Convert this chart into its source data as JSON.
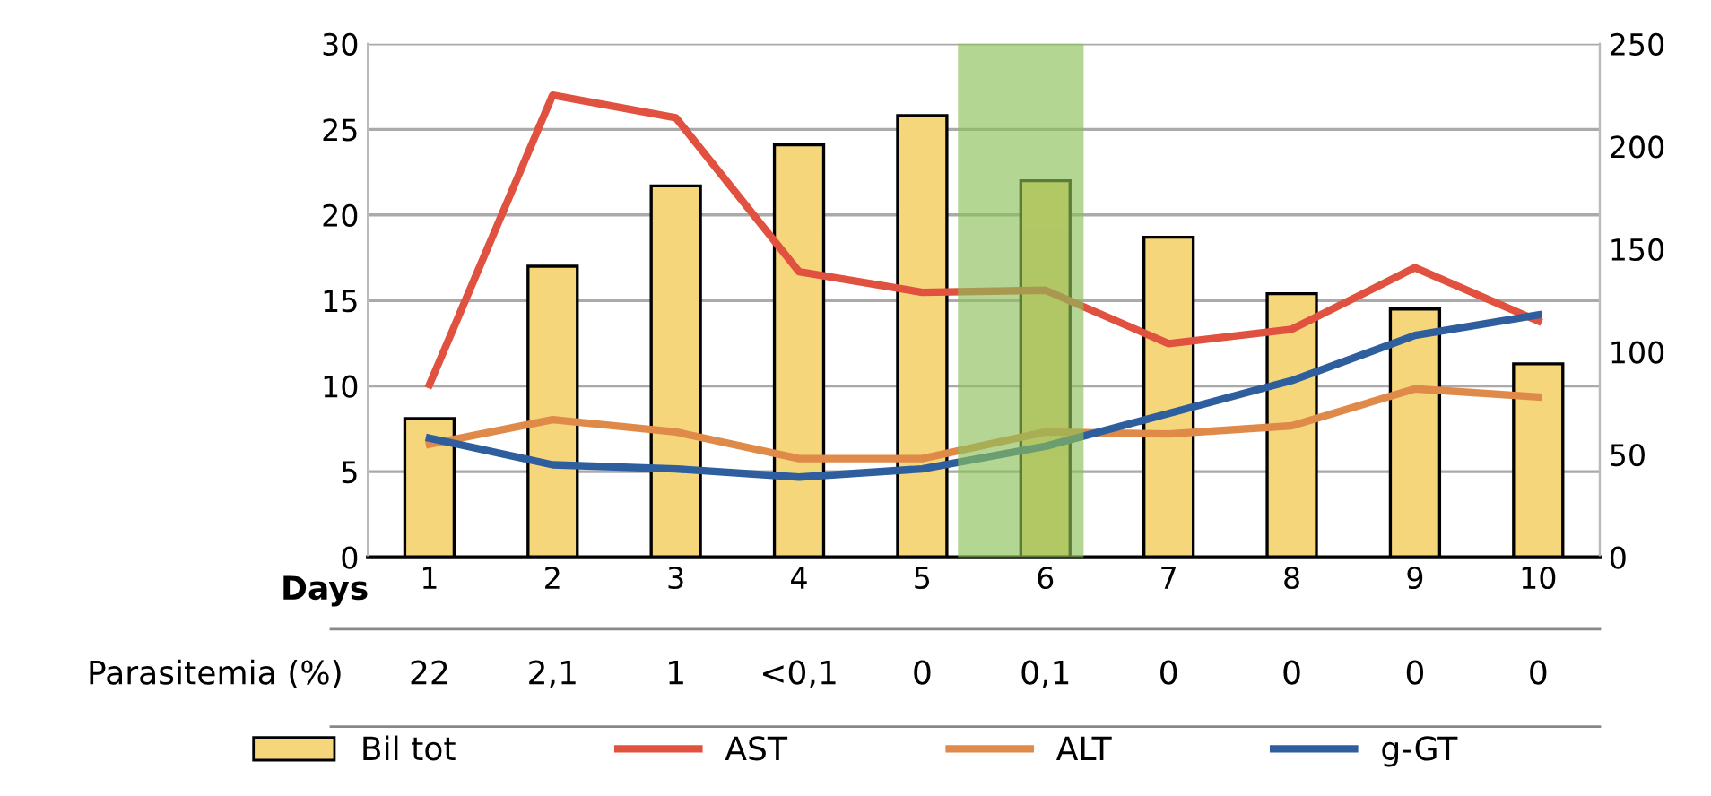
{
  "chart_data": {
    "type": "bar",
    "xlabel": "Days",
    "x": [
      1,
      2,
      3,
      4,
      5,
      6,
      7,
      8,
      9,
      10
    ],
    "xlim": [
      0.5,
      10.5
    ],
    "xticks": [
      1,
      2,
      3,
      4,
      5,
      6,
      7,
      8,
      9,
      10
    ],
    "ylim": [
      0,
      30
    ],
    "yticks": [
      0,
      5,
      10,
      15,
      20,
      25,
      30
    ],
    "y2lim": [
      0,
      250
    ],
    "y2ticks": [
      0,
      50,
      100,
      150,
      200,
      250
    ],
    "series": [
      {
        "name": "Bil tot",
        "color": "#f5d67a",
        "values": [
          8.1,
          17.0,
          21.7,
          24.1,
          25.8,
          22.0,
          18.7,
          15.4,
          14.5,
          11.3
        ]
      },
      {
        "name": "AST",
        "type": "line",
        "axis": "y2",
        "color": "#e0513f",
        "values": [
          84,
          225,
          214,
          139,
          129,
          130,
          104,
          111,
          141,
          115
        ]
      },
      {
        "name": "ALT",
        "type": "line",
        "axis": "y2",
        "color": "#e08a4a",
        "values": [
          55,
          67,
          61,
          48,
          48,
          61,
          60,
          64,
          82,
          78
        ]
      },
      {
        "name": "g-GT",
        "type": "line",
        "axis": "y2",
        "color": "#2e5e9e",
        "values": [
          58,
          45,
          43,
          39,
          43,
          54,
          70,
          86,
          108,
          118
        ]
      }
    ],
    "bands": [
      {
        "axis": "x",
        "from": 5.3,
        "to": 6.3,
        "color": "#8dc05a"
      }
    ],
    "annotations": [
      "Parasitemia (%)",
      "22",
      "2,1",
      "1",
      "<0,1",
      "0",
      "0,1",
      "0",
      "0",
      "0",
      "0"
    ],
    "grid": "y",
    "legend": "bottom",
    "line_style": "solid",
    "marker": "none"
  }
}
